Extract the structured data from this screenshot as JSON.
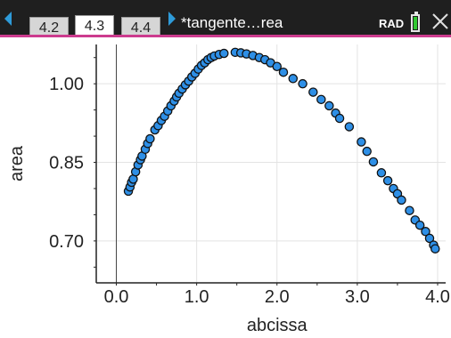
{
  "tabs": [
    {
      "label": "4.2",
      "active": false
    },
    {
      "label": "4.3",
      "active": true
    },
    {
      "label": "4.4",
      "active": false
    }
  ],
  "document": {
    "title": "*tangente…rea"
  },
  "status": {
    "angle_mode": "RAD",
    "battery": "full"
  },
  "colors": {
    "marker_fill": "#2e8fe6",
    "marker_stroke": "#111111",
    "tab_accent": "#cc3b8e",
    "nav_arrow": "#2e9bd9"
  },
  "chart_data": {
    "type": "scatter",
    "xlabel": "abcissa",
    "ylabel": "area",
    "xlim": [
      -0.25,
      4.1
    ],
    "ylim": [
      0.62,
      1.075
    ],
    "x_ticks": [
      0.0,
      1.0,
      2.0,
      3.0,
      4.0
    ],
    "x_tick_labels": [
      "0.0",
      "1.0",
      "2.0",
      "3.0",
      "4.0"
    ],
    "y_ticks": [
      0.7,
      0.85,
      1.0
    ],
    "y_tick_labels": [
      "0.70",
      "0.85",
      "1.00"
    ],
    "grid": true,
    "points": [
      [
        0.15,
        0.795
      ],
      [
        0.17,
        0.803
      ],
      [
        0.19,
        0.812
      ],
      [
        0.21,
        0.818
      ],
      [
        0.24,
        0.832
      ],
      [
        0.27,
        0.845
      ],
      [
        0.3,
        0.855
      ],
      [
        0.32,
        0.862
      ],
      [
        0.36,
        0.875
      ],
      [
        0.39,
        0.886
      ],
      [
        0.42,
        0.895
      ],
      [
        0.48,
        0.912
      ],
      [
        0.52,
        0.92
      ],
      [
        0.56,
        0.93
      ],
      [
        0.6,
        0.938
      ],
      [
        0.64,
        0.948
      ],
      [
        0.68,
        0.958
      ],
      [
        0.72,
        0.967
      ],
      [
        0.75,
        0.975
      ],
      [
        0.78,
        0.982
      ],
      [
        0.82,
        0.99
      ],
      [
        0.86,
        0.998
      ],
      [
        0.9,
        1.005
      ],
      [
        0.94,
        1.013
      ],
      [
        0.98,
        1.02
      ],
      [
        1.02,
        1.028
      ],
      [
        1.06,
        1.035
      ],
      [
        1.1,
        1.04
      ],
      [
        1.14,
        1.046
      ],
      [
        1.18,
        1.05
      ],
      [
        1.22,
        1.053
      ],
      [
        1.28,
        1.056
      ],
      [
        1.34,
        1.058
      ],
      [
        1.48,
        1.06
      ],
      [
        1.55,
        1.059
      ],
      [
        1.62,
        1.057
      ],
      [
        1.7,
        1.054
      ],
      [
        1.78,
        1.05
      ],
      [
        1.85,
        1.046
      ],
      [
        1.92,
        1.04
      ],
      [
        2.0,
        1.033
      ],
      [
        2.08,
        1.022
      ],
      [
        2.2,
        1.01
      ],
      [
        2.32,
        1.0
      ],
      [
        2.45,
        0.984
      ],
      [
        2.55,
        0.97
      ],
      [
        2.65,
        0.958
      ],
      [
        2.73,
        0.944
      ],
      [
        2.78,
        0.934
      ],
      [
        2.9,
        0.918
      ],
      [
        3.05,
        0.889
      ],
      [
        3.12,
        0.871
      ],
      [
        3.2,
        0.851
      ],
      [
        3.3,
        0.83
      ],
      [
        3.38,
        0.815
      ],
      [
        3.45,
        0.8
      ],
      [
        3.5,
        0.79
      ],
      [
        3.55,
        0.778
      ],
      [
        3.65,
        0.758
      ],
      [
        3.72,
        0.74
      ],
      [
        3.78,
        0.73
      ],
      [
        3.85,
        0.718
      ],
      [
        3.9,
        0.705
      ],
      [
        3.95,
        0.692
      ],
      [
        3.97,
        0.685
      ]
    ]
  }
}
